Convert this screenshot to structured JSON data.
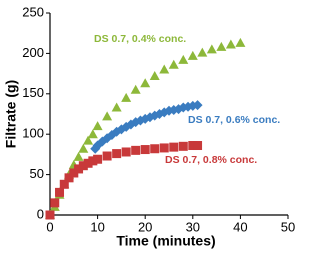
{
  "chart_data": {
    "type": "scatter",
    "xlabel": "Time (minutes)",
    "ylabel": "Filtrate (g)",
    "xlim": [
      0,
      50
    ],
    "xticks": [
      0,
      10,
      20,
      30,
      40,
      50
    ],
    "ylim": [
      0,
      250
    ],
    "yticks": [
      0,
      50,
      100,
      150,
      200,
      250
    ],
    "grid": false,
    "annotations": [
      "DS 0.7, 0.4% conc.",
      "DS 0.7, 0.6% conc.",
      "DS 0.7, 0.8% conc."
    ],
    "series": [
      {
        "name": "DS 0.7, 0.4% conc.",
        "color": "#8db83a",
        "marker": "triangle",
        "x": [
          0,
          1,
          2,
          3,
          4,
          5,
          6,
          7,
          8,
          9,
          10,
          12,
          14,
          16,
          18,
          20,
          22,
          24,
          26,
          28,
          30,
          32,
          34,
          36,
          38,
          40
        ],
        "values": [
          0,
          10,
          25,
          38,
          50,
          62,
          72,
          82,
          92,
          100,
          110,
          122,
          133,
          145,
          155,
          163,
          172,
          180,
          186,
          192,
          197,
          201,
          205,
          208,
          211,
          213
        ]
      },
      {
        "name": "DS 0.7, 0.6% conc.",
        "color": "#3a7cc0",
        "marker": "diamond",
        "x": [
          9.5,
          10,
          11,
          12,
          13,
          14,
          15,
          16,
          17,
          18,
          19,
          20,
          21,
          22,
          23,
          24,
          25,
          26,
          27,
          28,
          29,
          30,
          31
        ],
        "values": [
          82,
          86,
          91,
          95,
          99,
          103,
          106,
          109,
          112,
          115,
          117,
          119,
          121,
          123,
          125,
          127,
          129,
          130,
          131,
          133,
          134,
          135,
          136
        ]
      },
      {
        "name": "DS 0.7, 0.8% conc.",
        "color": "#c8393a",
        "marker": "square",
        "x": [
          0,
          1,
          2,
          3,
          4,
          5,
          6,
          7,
          8,
          9,
          10,
          12,
          14,
          16,
          18,
          20,
          22,
          24,
          26,
          28,
          30,
          31
        ],
        "values": [
          0,
          15,
          28,
          38,
          46,
          52,
          57,
          61,
          64,
          67,
          69,
          73,
          76,
          78,
          80,
          81,
          82,
          83,
          84,
          85,
          86,
          86
        ]
      }
    ]
  }
}
